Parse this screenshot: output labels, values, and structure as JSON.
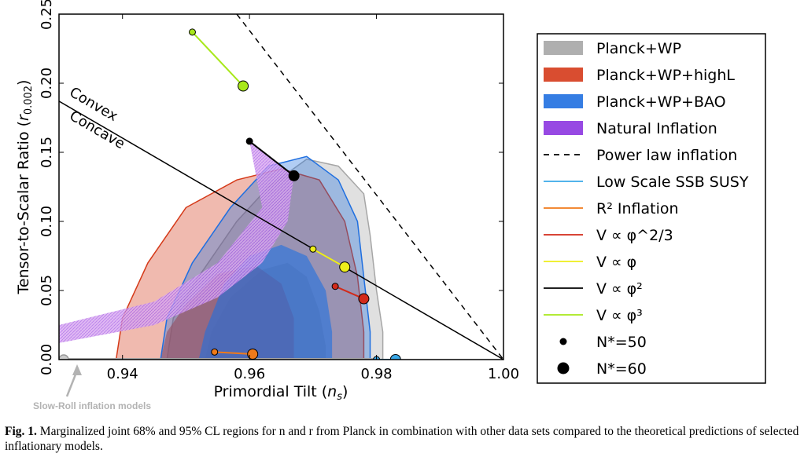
{
  "chart_data": {
    "type": "contour",
    "xlabel": "Primordial Tilt (ns)",
    "ylabel": "Tensor-to-Scalar Ratio (r0.002)",
    "xlim": [
      0.93,
      1.0
    ],
    "ylim": [
      0.0,
      0.25
    ],
    "x_ticks": [
      "0.94",
      "0.96",
      "0.98",
      "1.00"
    ],
    "y_ticks": [
      "0.00",
      "0.05",
      "0.10",
      "0.15",
      "0.20",
      "0.25"
    ],
    "grid": false,
    "legend_position": "right",
    "legend": [
      {
        "label": "Planck+WP",
        "kind": "patch",
        "color": "#a6a6a6"
      },
      {
        "label": "Planck+WP+highL",
        "kind": "patch",
        "color": "#d53a19"
      },
      {
        "label": "Planck+WP+BAO",
        "kind": "patch",
        "color": "#1f6fe0"
      },
      {
        "label": "Natural Inflation",
        "kind": "patch",
        "color": "#8c35e0"
      },
      {
        "label": "Power law inflation",
        "kind": "dashed",
        "color": "#000000"
      },
      {
        "label": "Low Scale SSB SUSY",
        "kind": "line",
        "color": "#3aa8e8"
      },
      {
        "label": "R² Inflation",
        "kind": "line",
        "color": "#f07a1a"
      },
      {
        "label": "V ∝ φ^2/3",
        "kind": "line",
        "color": "#d22a1a"
      },
      {
        "label": "V ∝ φ",
        "kind": "line",
        "color": "#eeee1a"
      },
      {
        "label": "V ∝ φ²",
        "kind": "line",
        "color": "#000000"
      },
      {
        "label": "V ∝ φ³",
        "kind": "line",
        "color": "#a8e81a"
      },
      {
        "label": "N*=50",
        "kind": "small-dot",
        "color": "#000000"
      },
      {
        "label": "N*=60",
        "kind": "big-dot",
        "color": "#000000"
      }
    ],
    "annotations": [
      "Convex",
      "Concave"
    ],
    "contours": [
      {
        "name": "Planck+WP",
        "color": "#a6a6a6",
        "cl95": [
          [
            0.947,
            0
          ],
          [
            0.948,
            0.03
          ],
          [
            0.952,
            0.06
          ],
          [
            0.958,
            0.1
          ],
          [
            0.963,
            0.125
          ],
          [
            0.969,
            0.145
          ],
          [
            0.974,
            0.14
          ],
          [
            0.978,
            0.12
          ],
          [
            0.979,
            0.09
          ],
          [
            0.98,
            0.05
          ],
          [
            0.981,
            0.02
          ],
          [
            0.981,
            0
          ]
        ],
        "cl68": [
          [
            0.953,
            0
          ],
          [
            0.954,
            0.02
          ],
          [
            0.957,
            0.045
          ],
          [
            0.962,
            0.065
          ],
          [
            0.966,
            0.07
          ],
          [
            0.969,
            0.06
          ],
          [
            0.971,
            0.035
          ],
          [
            0.972,
            0.01
          ],
          [
            0.972,
            0
          ]
        ]
      },
      {
        "name": "Planck+WP+highL",
        "color": "#d53a19",
        "cl95": [
          [
            0.939,
            0
          ],
          [
            0.94,
            0.03
          ],
          [
            0.944,
            0.07
          ],
          [
            0.95,
            0.11
          ],
          [
            0.958,
            0.13
          ],
          [
            0.965,
            0.138
          ],
          [
            0.971,
            0.13
          ],
          [
            0.975,
            0.1
          ],
          [
            0.977,
            0.06
          ],
          [
            0.978,
            0.02
          ],
          [
            0.978,
            0
          ]
        ],
        "cl68": [
          [
            0.946,
            0
          ],
          [
            0.947,
            0.02
          ],
          [
            0.95,
            0.04
          ],
          [
            0.955,
            0.062
          ],
          [
            0.961,
            0.068
          ],
          [
            0.965,
            0.055
          ],
          [
            0.967,
            0.03
          ],
          [
            0.967,
            0
          ]
        ]
      },
      {
        "name": "Planck+WP+BAO",
        "color": "#1f6fe0",
        "cl95": [
          [
            0.946,
            0
          ],
          [
            0.947,
            0.03
          ],
          [
            0.951,
            0.07
          ],
          [
            0.957,
            0.11
          ],
          [
            0.963,
            0.14
          ],
          [
            0.969,
            0.147
          ],
          [
            0.974,
            0.13
          ],
          [
            0.977,
            0.1
          ],
          [
            0.978,
            0.06
          ],
          [
            0.979,
            0.02
          ],
          [
            0.979,
            0
          ]
        ],
        "cl68": [
          [
            0.952,
            0
          ],
          [
            0.953,
            0.02
          ],
          [
            0.956,
            0.055
          ],
          [
            0.96,
            0.075
          ],
          [
            0.965,
            0.083
          ],
          [
            0.969,
            0.075
          ],
          [
            0.972,
            0.05
          ],
          [
            0.973,
            0.02
          ],
          [
            0.973,
            0
          ]
        ]
      }
    ],
    "natural_inflation": {
      "upper": [
        [
          0.93,
          0.025
        ],
        [
          0.945,
          0.042
        ],
        [
          0.955,
          0.07
        ],
        [
          0.962,
          0.11
        ],
        [
          0.96,
          0.158
        ],
        [
          0.967,
          0.133
        ]
      ],
      "lower": [
        [
          0.93,
          0.012
        ],
        [
          0.945,
          0.025
        ],
        [
          0.955,
          0.045
        ],
        [
          0.962,
          0.07
        ],
        [
          0.966,
          0.1
        ],
        [
          0.967,
          0.133
        ]
      ]
    },
    "power_law": [
      [
        0.958,
        0.25
      ],
      [
        1.0,
        0.0
      ]
    ],
    "phi2_line": [
      [
        0.93,
        0.187
      ],
      [
        1.0,
        0.0
      ]
    ],
    "models": [
      {
        "name": "V ∝ φ³",
        "color": "#a8e81a",
        "n50": [
          0.951,
          0.237
        ],
        "n60": [
          0.959,
          0.198
        ]
      },
      {
        "name": "V ∝ φ²",
        "color": "#000000",
        "n50": [
          0.96,
          0.158
        ],
        "n60": [
          0.967,
          0.133
        ]
      },
      {
        "name": "V ∝ φ",
        "color": "#eeee1a",
        "n50": [
          0.97,
          0.08
        ],
        "n60": [
          0.975,
          0.067
        ]
      },
      {
        "name": "V ∝ φ^2/3",
        "color": "#d22a1a",
        "n50": [
          0.9735,
          0.053
        ],
        "n60": [
          0.978,
          0.044
        ]
      },
      {
        "name": "R² Inflation",
        "color": "#f07a1a",
        "n50": [
          0.9545,
          0.0055
        ],
        "n60": [
          0.9605,
          0.004
        ]
      },
      {
        "name": "Low Scale SSB SUSY",
        "color": "#3aa8e8",
        "n50": [
          0.98,
          0.0
        ],
        "n60": [
          0.983,
          0.0
        ]
      }
    ],
    "slow_roll_bar": [
      [
        0.93,
        0.0
      ],
      [
        0.98,
        0.0
      ]
    ]
  },
  "annotation_text": {
    "slow_roll": "Slow-Roll inflation models"
  },
  "caption": {
    "label": "Fig. 1.",
    "text": " Marginalized joint 68% and 95% CL regions for n and r from Planck in combination with other data sets compared to the theoretical predictions of selected inflationary models."
  }
}
